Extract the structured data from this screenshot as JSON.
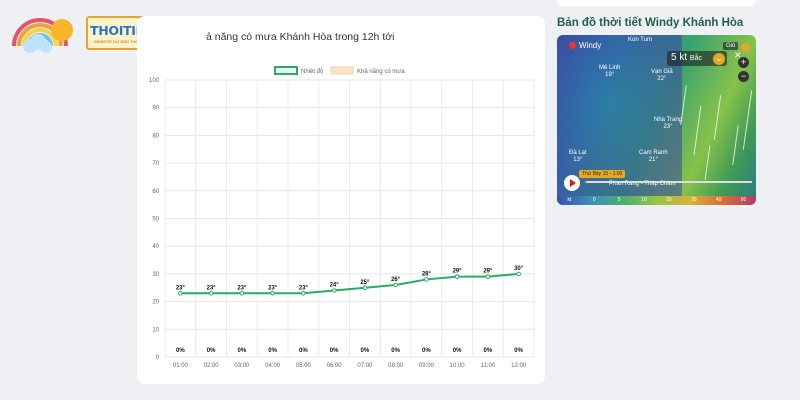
{
  "brand": {
    "name": "THOITIETHOMNAY.TV",
    "tagline": "WEBSITE DỰ BÁO THỜI TIẾT HÔM NAY"
  },
  "card": {
    "title": "ả năng có mưa Khánh Hòa trong 12h tới"
  },
  "chart_data": {
    "type": "line",
    "legend": [
      "Nhiệt độ",
      "Khả năng có mưa"
    ],
    "legend_placement": "top",
    "x": [
      "01:00",
      "02:00",
      "03:00",
      "04:00",
      "05:00",
      "06:00",
      "07:00",
      "08:00",
      "09:00",
      "10:00",
      "11:00",
      "12:00"
    ],
    "series": [
      {
        "name": "Nhiệt độ",
        "values": [
          23,
          23,
          23,
          23,
          23,
          24,
          25,
          26,
          28,
          29,
          29,
          30
        ],
        "labels": [
          "23°",
          "23°",
          "23°",
          "23°",
          "23°",
          "24°",
          "25°",
          "26°",
          "28°",
          "29°",
          "29°",
          "30°"
        ],
        "color": "#27ae60"
      },
      {
        "name": "Khả năng có mưa",
        "values": [
          0,
          0,
          0,
          0,
          0,
          0,
          0,
          0,
          0,
          0,
          0,
          0
        ],
        "labels": [
          "0%",
          "0%",
          "0%",
          "0%",
          "0%",
          "0%",
          "0%",
          "0%",
          "0%",
          "0%",
          "0%",
          "0%"
        ],
        "color": "#fbe3c8"
      }
    ],
    "yticks": [
      "0",
      "10",
      "20",
      "30",
      "40",
      "50",
      "60",
      "70",
      "80",
      "90",
      "100"
    ],
    "ylim": [
      0,
      100
    ],
    "grid": true
  },
  "map_section": {
    "title": "Bản đồ thời tiết Windy Khánh Hòa",
    "windy_label": "Windy",
    "wind_value": "5 kt",
    "wind_dir": "Bắc",
    "layer_label": "Gió",
    "time_label": "Thứ Bảy 15 - 1:00",
    "scale": [
      "kt",
      "0",
      "5",
      "10",
      "20",
      "30",
      "40",
      "60"
    ],
    "places": [
      {
        "name": "Kon Tum",
        "temp": ""
      },
      {
        "name": "Mê Linh",
        "temp": "19°"
      },
      {
        "name": "Vạn Giã",
        "temp": "22°"
      },
      {
        "name": "Nha Trang",
        "temp": "23°"
      },
      {
        "name": "Đà Lạt",
        "temp": "13°"
      },
      {
        "name": "Cam Ranh",
        "temp": "21°"
      },
      {
        "name": "Phan Rang - Tháp Chàm",
        "temp": ""
      }
    ]
  }
}
